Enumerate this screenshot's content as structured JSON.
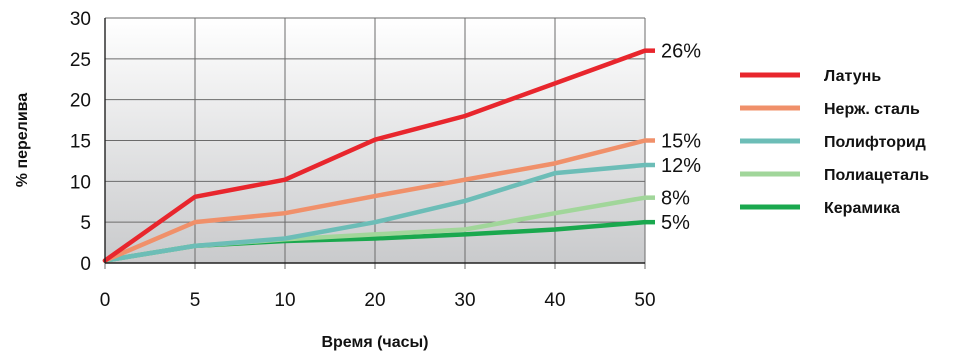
{
  "chart_data": {
    "type": "line",
    "x": [
      "0",
      "5",
      "10",
      "20",
      "30",
      "40",
      "50"
    ],
    "xlabel": "Время (часы)",
    "ylabel": "% перелива",
    "ylim": [
      0,
      30
    ],
    "yticks": [
      0,
      5,
      10,
      15,
      20,
      25,
      30
    ],
    "grid": "horizontal",
    "legend_position": "right",
    "series": [
      {
        "name": "Латунь",
        "color": "#e8262d",
        "values": [
          0.3,
          8.1,
          10.2,
          15.1,
          18.0,
          22.0,
          26.0
        ],
        "end_label": "26%"
      },
      {
        "name": "Нерж. сталь",
        "color": "#f0906a",
        "values": [
          0.3,
          5.0,
          6.1,
          8.2,
          10.2,
          12.2,
          15.0
        ],
        "end_label": "15%"
      },
      {
        "name": "Полифторид",
        "color": "#6cbdb7",
        "values": [
          0.3,
          2.1,
          3.0,
          5.0,
          7.6,
          11.0,
          12.0
        ],
        "end_label": "12%"
      },
      {
        "name": "Полиацеталь",
        "color": "#a1d69a",
        "values": [
          0.3,
          2.1,
          2.9,
          3.5,
          4.1,
          6.1,
          8.0
        ],
        "end_label": "8%"
      },
      {
        "name": "Керамика",
        "color": "#1aa84e",
        "values": [
          0.3,
          2.1,
          2.7,
          3.0,
          3.5,
          4.1,
          5.0
        ],
        "end_label": "5%"
      }
    ]
  }
}
